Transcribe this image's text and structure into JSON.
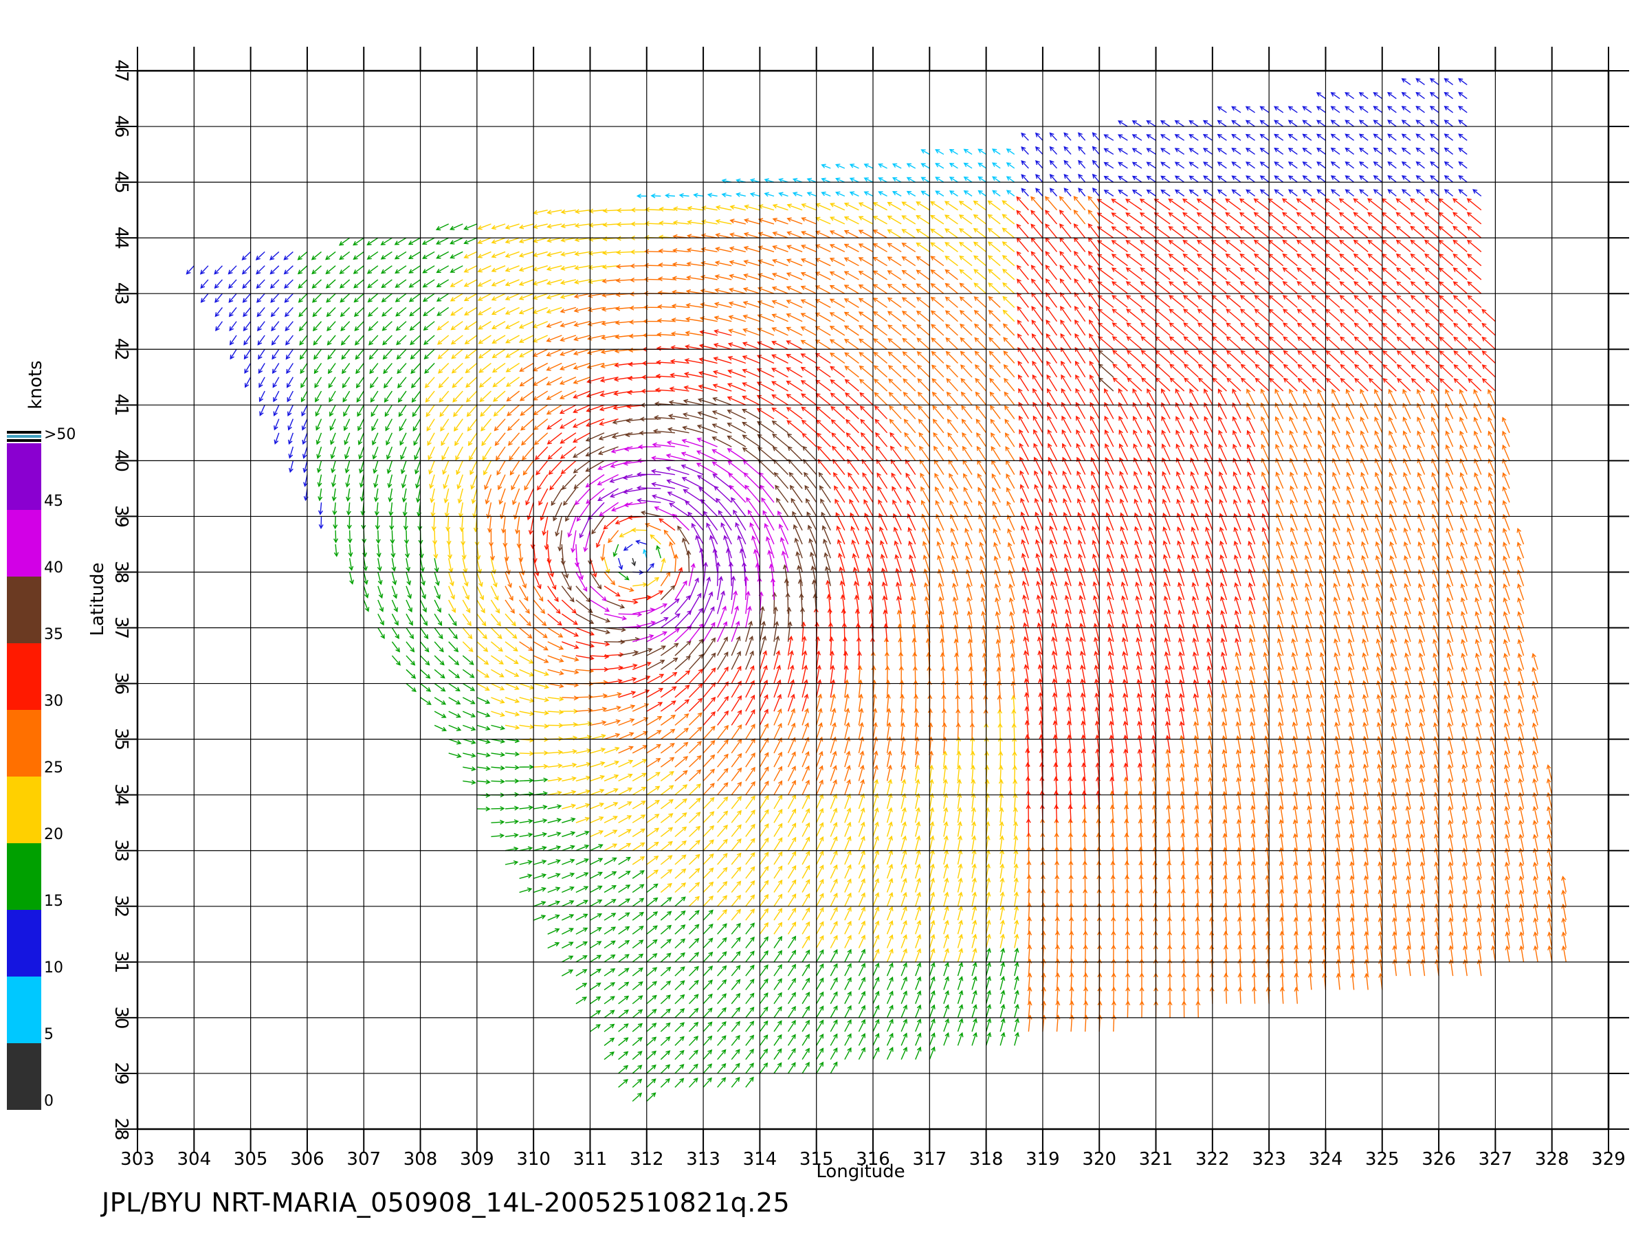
{
  "chart_data": {
    "type": "scatter",
    "subtype": "wind-vector-field",
    "title": "",
    "xlabel": "Longitude",
    "ylabel": "Latitude",
    "xlim": [
      303,
      329
    ],
    "ylim": [
      28,
      47
    ],
    "x_ticks": [
      303,
      304,
      305,
      306,
      307,
      308,
      309,
      310,
      311,
      312,
      313,
      314,
      315,
      316,
      317,
      318,
      319,
      320,
      321,
      322,
      323,
      324,
      325,
      326,
      327,
      328,
      329
    ],
    "y_ticks": [
      28,
      29,
      30,
      31,
      32,
      33,
      34,
      35,
      36,
      37,
      38,
      39,
      40,
      41,
      42,
      43,
      44,
      45,
      46,
      47
    ],
    "grid": true,
    "storm_center": {
      "lon": 312.0,
      "lat": 38.3
    },
    "swath_corners": [
      {
        "lon": 303.9,
        "lat": 43.6
      },
      {
        "lon": 326.5,
        "lat": 46.9
      },
      {
        "lon": 328.4,
        "lat": 31.0
      },
      {
        "lon": 311.6,
        "lat": 28.4
      }
    ],
    "colorbar": {
      "unit": "knots",
      "tick_labels": [
        "0",
        "5",
        "10",
        "15",
        "20",
        "25",
        "30",
        "35",
        "40",
        "45",
        ">50"
      ],
      "bins": [
        {
          "min": 0,
          "max": 5,
          "color": "#303030"
        },
        {
          "min": 5,
          "max": 10,
          "color": "#00c8ff"
        },
        {
          "min": 10,
          "max": 15,
          "color": "#1515e0"
        },
        {
          "min": 15,
          "max": 20,
          "color": "#00a000"
        },
        {
          "min": 20,
          "max": 25,
          "color": "#ffd000"
        },
        {
          "min": 25,
          "max": 30,
          "color": "#ff7000"
        },
        {
          "min": 30,
          "max": 35,
          "color": "#ff1a00"
        },
        {
          "min": 35,
          "max": 40,
          "color": "#6b3a22"
        },
        {
          "min": 40,
          "max": 45,
          "color": "#d200e6"
        },
        {
          "min": 45,
          "max": 50,
          "color": "#8a00d0"
        }
      ]
    }
  },
  "footer": {
    "text": "JPL/BYU  NRT-MARIA_050908_14L-20052510821q.25"
  }
}
